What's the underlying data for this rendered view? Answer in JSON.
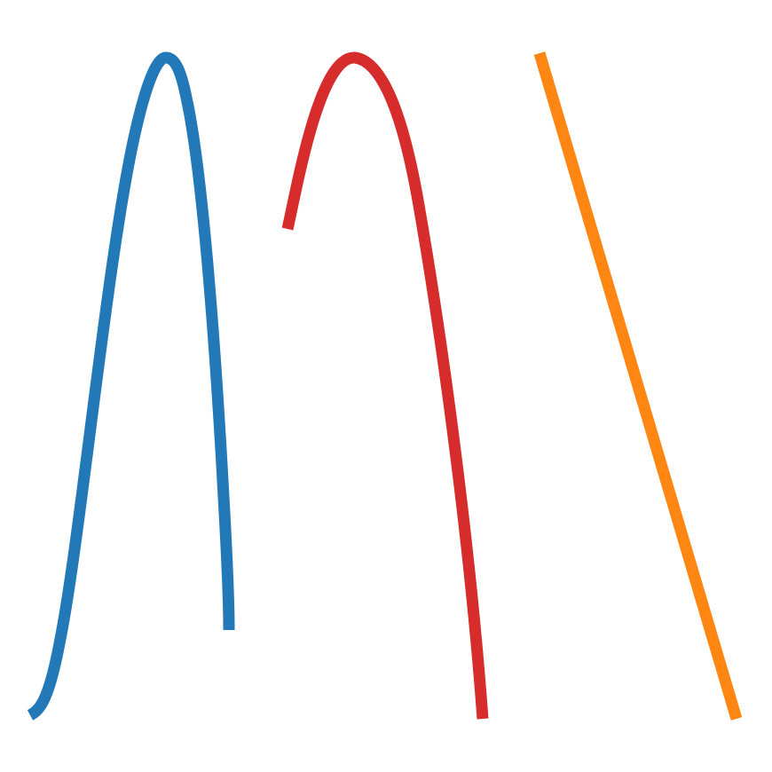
{
  "strokes": [
    {
      "name": "blue-curve",
      "color": "#2379B7"
    },
    {
      "name": "red-curve",
      "color": "#D62C2C"
    },
    {
      "name": "orange-line",
      "color": "#FF8612"
    }
  ],
  "background": "#ffffff"
}
